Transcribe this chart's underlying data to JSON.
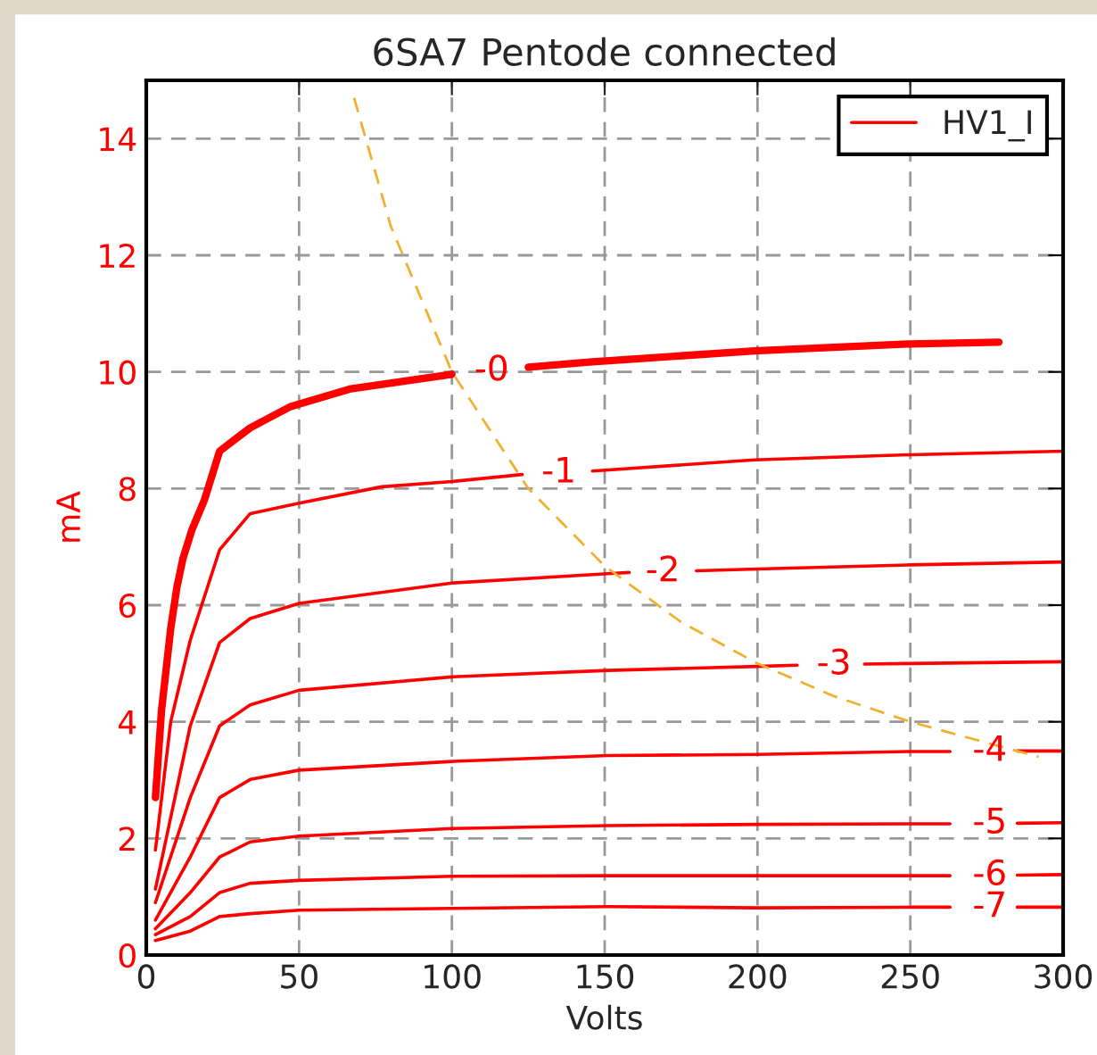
{
  "chart_data": {
    "type": "line",
    "title": "6SA7 Pentode connected",
    "xlabel": "Volts",
    "ylabel": "mA",
    "xlim": [
      0,
      300
    ],
    "xticks": [
      0,
      50,
      100,
      150,
      200,
      250,
      300
    ],
    "ylim": [
      0,
      15
    ],
    "yticks": [
      0,
      2,
      4,
      6,
      8,
      10,
      12,
      14
    ],
    "grid": true,
    "legend": "top right",
    "line_style": "solid",
    "marker": "none",
    "series": [
      {
        "name": "HV1_I",
        "color": "#ff0000",
        "x": [
          3,
          5,
          8,
          10,
          12,
          15,
          19,
          24,
          34,
          47,
          67,
          100,
          113,
          125,
          145,
          199,
          250,
          279
        ],
        "values": [
          2.7,
          4.2,
          5.6,
          6.3,
          6.8,
          7.3,
          7.8,
          8.64,
          9.04,
          9.4,
          9.71,
          9.96,
          null,
          10.08,
          10.17,
          10.36,
          10.48,
          10.51
        ]
      },
      {
        "color": "#ff0000",
        "x": [
          3,
          8,
          14.4,
          24,
          34,
          50,
          77,
          100,
          123,
          135,
          146,
          199,
          250,
          300
        ],
        "values": [
          1.8,
          4.0,
          5.4,
          6.95,
          7.57,
          7.75,
          8.03,
          8.12,
          8.24,
          null,
          8.3,
          8.49,
          8.58,
          8.64
        ]
      },
      {
        "color": "#ff0000",
        "x": [
          3,
          14.4,
          24,
          34,
          50,
          100,
          151,
          158,
          169,
          180,
          200,
          250,
          300
        ],
        "values": [
          1.13,
          3.93,
          5.36,
          5.77,
          6.03,
          6.38,
          6.54,
          6.56,
          null,
          6.59,
          6.62,
          6.69,
          6.74
        ]
      },
      {
        "color": "#ff0000",
        "x": [
          3,
          14.4,
          24,
          34,
          50,
          100,
          151,
          200,
          213,
          225,
          235,
          250,
          300
        ],
        "values": [
          0.9,
          2.7,
          3.93,
          4.29,
          4.54,
          4.77,
          4.88,
          4.95,
          4.97,
          null,
          4.99,
          5.0,
          5.03
        ]
      },
      {
        "color": "#ff0000",
        "x": [
          3,
          14.4,
          24,
          34,
          50,
          100,
          151,
          200,
          250,
          263,
          276,
          285,
          300
        ],
        "values": [
          0.6,
          1.68,
          2.7,
          3.01,
          3.17,
          3.32,
          3.42,
          3.44,
          3.49,
          3.49,
          null,
          3.5,
          3.5
        ]
      },
      {
        "color": "#ff0000",
        "x": [
          3,
          14.4,
          24,
          34,
          50,
          100,
          151,
          200,
          250,
          263,
          276,
          285,
          300
        ],
        "values": [
          0.45,
          1.07,
          1.68,
          1.94,
          2.04,
          2.17,
          2.22,
          2.24,
          2.25,
          2.25,
          null,
          2.26,
          2.27
        ]
      },
      {
        "color": "#ff0000",
        "x": [
          3,
          14.4,
          24,
          34,
          50,
          100,
          151,
          200,
          250,
          263,
          276,
          285,
          300
        ],
        "values": [
          0.35,
          0.66,
          1.07,
          1.23,
          1.28,
          1.35,
          1.36,
          1.36,
          1.36,
          1.36,
          null,
          1.37,
          1.38
        ]
      },
      {
        "color": "#ff0000",
        "x": [
          3,
          14.4,
          24,
          34,
          50,
          100,
          151,
          200,
          250,
          263,
          276,
          285,
          300
        ],
        "values": [
          0.25,
          0.41,
          0.66,
          0.71,
          0.77,
          0.8,
          0.83,
          0.81,
          0.82,
          0.82,
          null,
          0.82,
          0.82
        ]
      },
      {
        "color": "#f0b030",
        "line_style": "dashed",
        "x": [
          68,
          80,
          100,
          125,
          150,
          175,
          200,
          225,
          250,
          275,
          292
        ],
        "values": [
          14.7,
          12.5,
          10,
          8,
          6.67,
          5.71,
          5,
          4.44,
          4,
          3.64,
          3.4
        ]
      }
    ],
    "annotations": [
      "-0",
      "-1",
      "-2",
      "-3",
      "-4",
      "-5",
      "-6",
      "-7"
    ]
  }
}
